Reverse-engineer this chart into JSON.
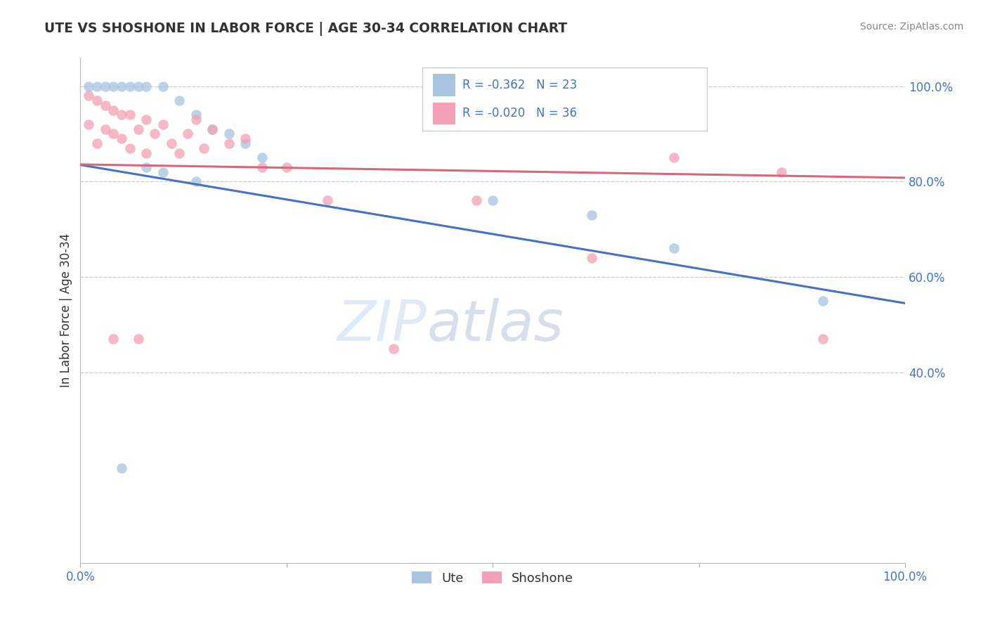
{
  "title": "UTE VS SHOSHONE IN LABOR FORCE | AGE 30-34 CORRELATION CHART",
  "source": "Source: ZipAtlas.com",
  "ylabel": "In Labor Force | Age 30-34",
  "ute_R": -0.362,
  "ute_N": 23,
  "shoshone_R": -0.02,
  "shoshone_N": 36,
  "ute_color": "#a8c4e0",
  "shoshone_color": "#f4a0b4",
  "ute_line_color": "#4472c4",
  "shoshone_line_color": "#d9667a",
  "legend_ute_label": "Ute",
  "legend_shoshone_label": "Shoshone",
  "watermark_zip": "ZIP",
  "watermark_atlas": "atlas",
  "ylim_min": 0.0,
  "ylim_max": 1.06,
  "xlim_min": 0.0,
  "xlim_max": 1.0,
  "yticks": [
    0.4,
    0.6,
    0.8,
    1.0
  ],
  "ytick_labels": [
    "40.0%",
    "60.0%",
    "80.0%",
    "100.0%"
  ],
  "xtick_positions": [
    0.0,
    0.25,
    0.5,
    0.75,
    1.0
  ],
  "xtick_labels": [
    "0.0%",
    "",
    "",
    "",
    "100.0%"
  ],
  "ute_x": [
    0.01,
    0.02,
    0.03,
    0.04,
    0.05,
    0.06,
    0.07,
    0.08,
    0.1,
    0.12,
    0.14,
    0.16,
    0.18,
    0.2,
    0.22,
    0.08,
    0.1,
    0.14,
    0.5,
    0.62,
    0.72,
    0.9,
    0.05
  ],
  "ute_y": [
    1.0,
    1.0,
    1.0,
    1.0,
    1.0,
    1.0,
    1.0,
    1.0,
    1.0,
    0.97,
    0.94,
    0.91,
    0.9,
    0.88,
    0.85,
    0.83,
    0.82,
    0.8,
    0.76,
    0.73,
    0.66,
    0.55,
    0.2
  ],
  "shoshone_x": [
    0.01,
    0.01,
    0.02,
    0.02,
    0.03,
    0.03,
    0.04,
    0.04,
    0.05,
    0.05,
    0.06,
    0.06,
    0.07,
    0.08,
    0.08,
    0.09,
    0.1,
    0.11,
    0.12,
    0.13,
    0.14,
    0.15,
    0.16,
    0.18,
    0.2,
    0.22,
    0.25,
    0.3,
    0.38,
    0.48,
    0.62,
    0.72,
    0.85,
    0.04,
    0.07,
    0.9
  ],
  "shoshone_y": [
    0.98,
    0.92,
    0.97,
    0.88,
    0.96,
    0.91,
    0.95,
    0.9,
    0.94,
    0.89,
    0.94,
    0.87,
    0.91,
    0.93,
    0.86,
    0.9,
    0.92,
    0.88,
    0.86,
    0.9,
    0.93,
    0.87,
    0.91,
    0.88,
    0.89,
    0.83,
    0.83,
    0.76,
    0.45,
    0.76,
    0.64,
    0.85,
    0.82,
    0.47,
    0.47,
    0.47
  ]
}
